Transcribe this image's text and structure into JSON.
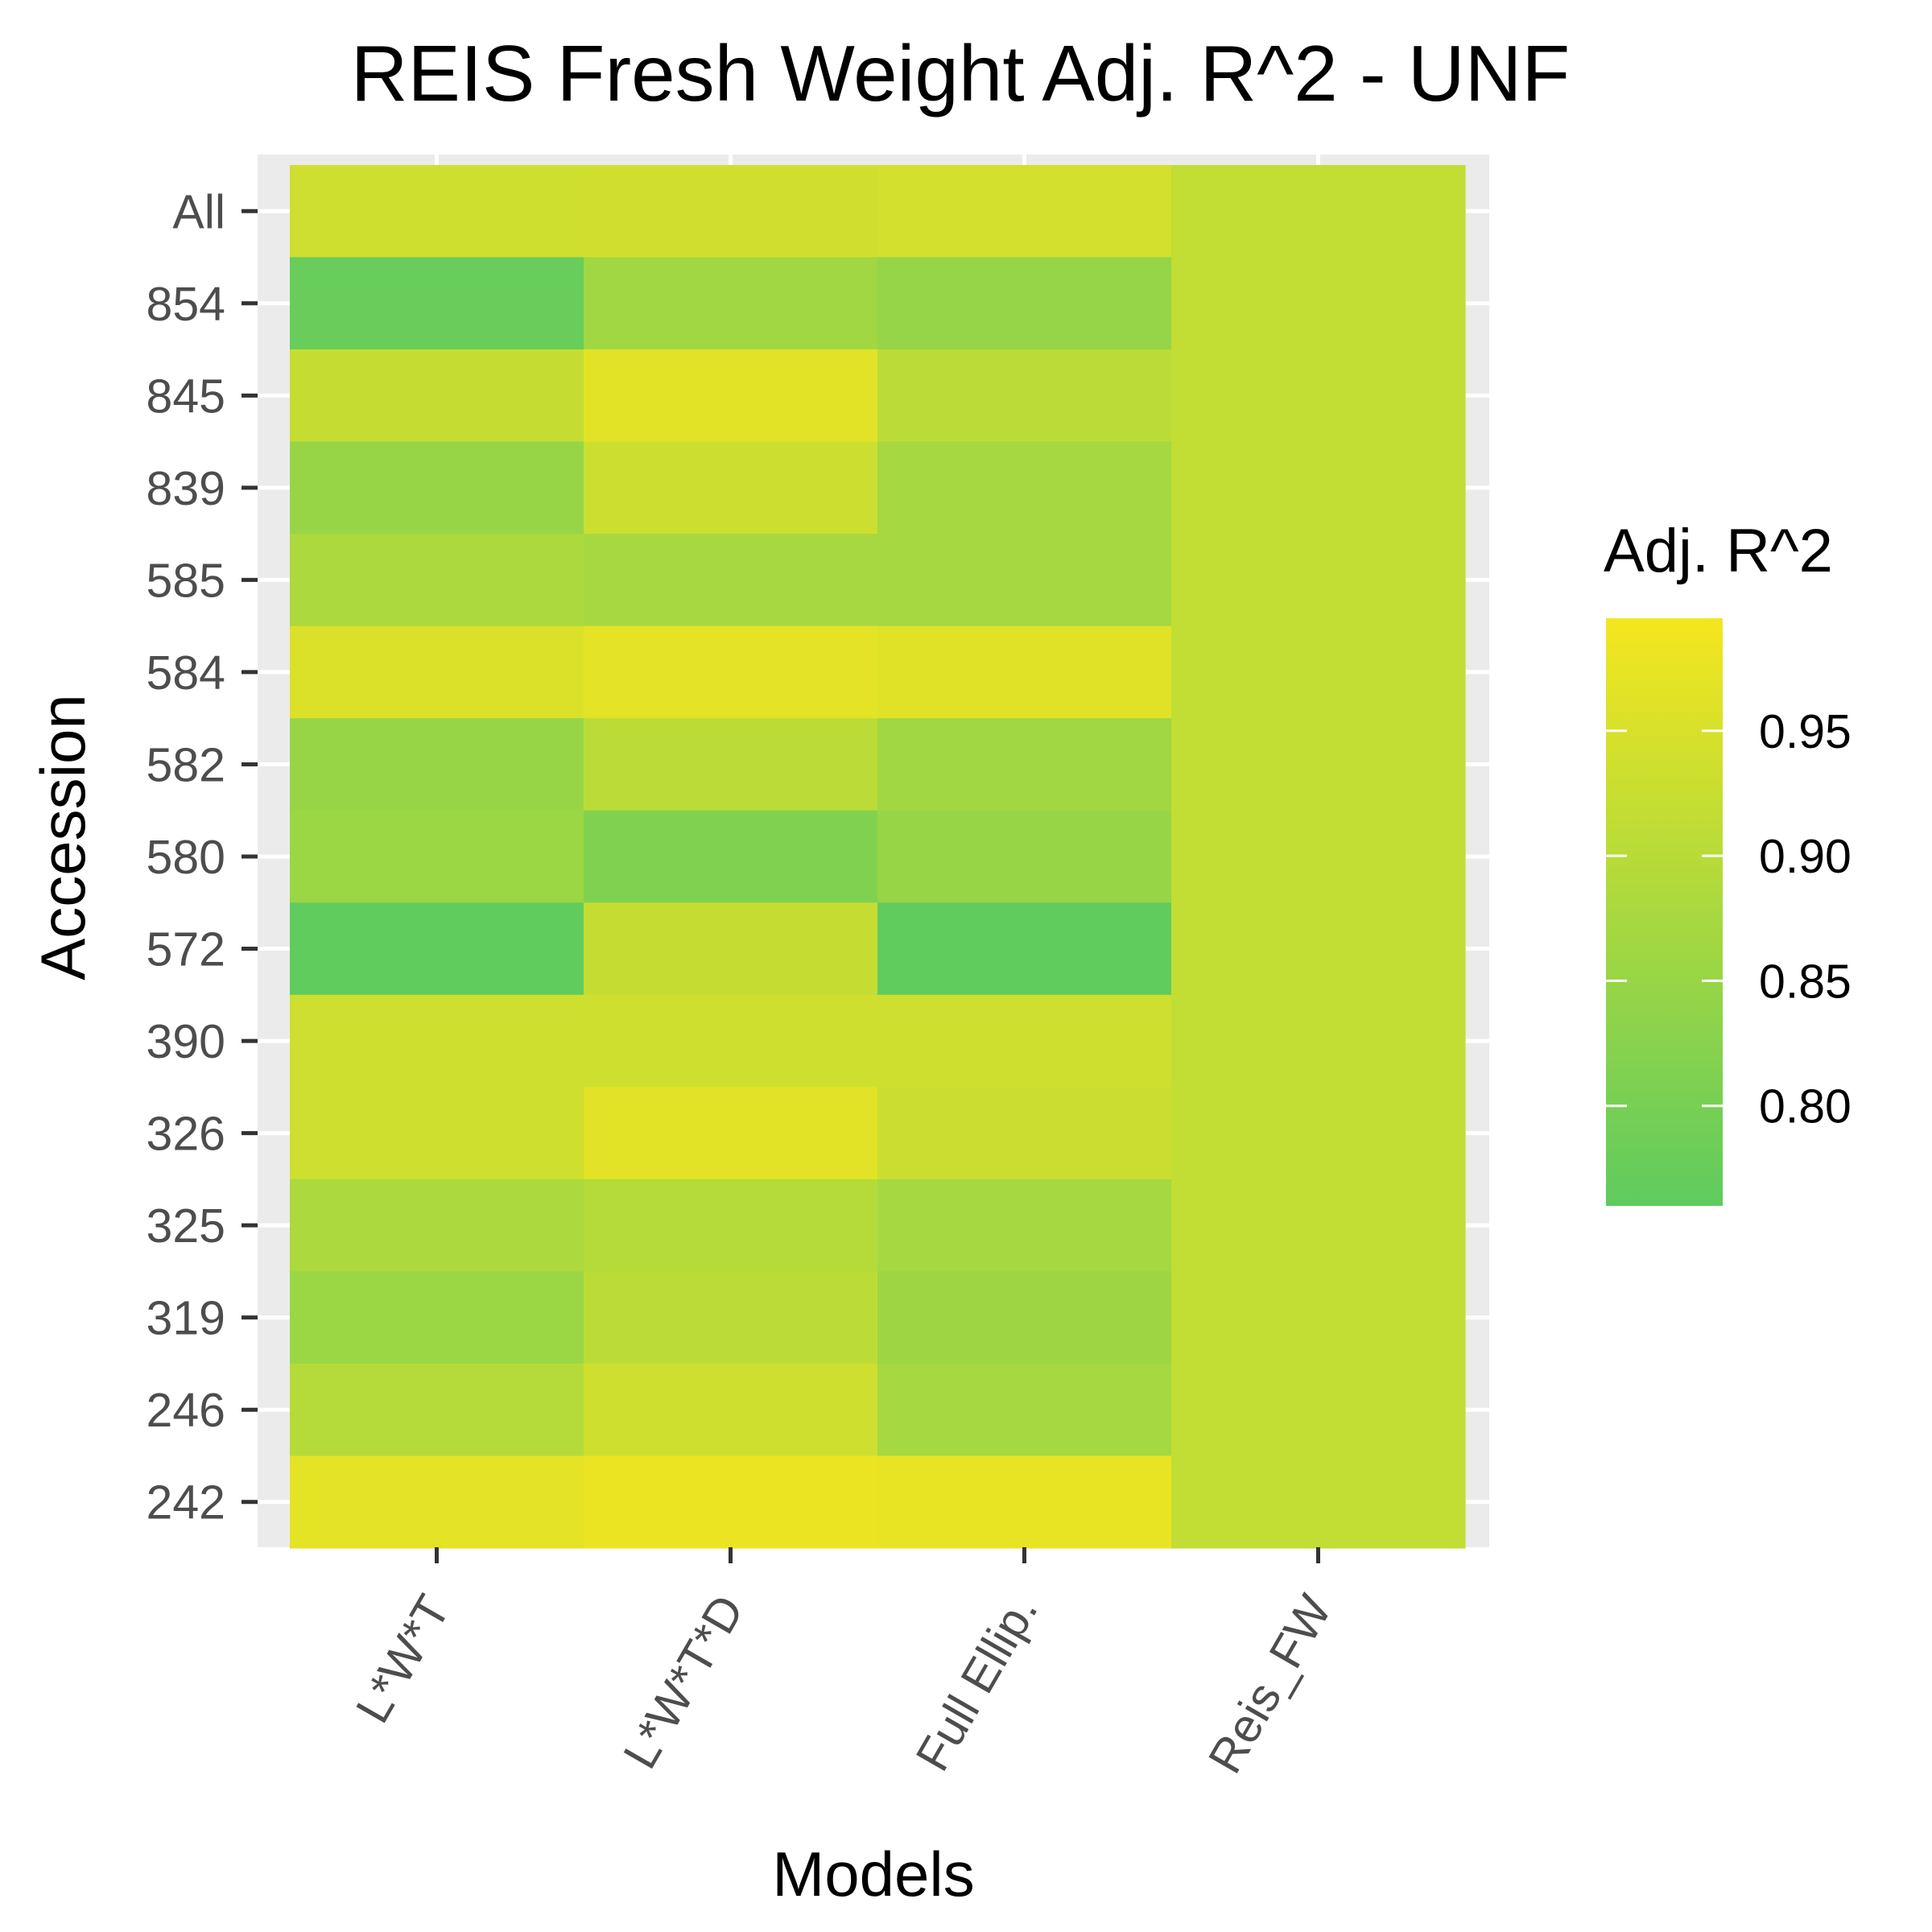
{
  "chart_data": {
    "type": "heatmap",
    "title": "REIS Fresh Weight Adj. R^2 - UNF",
    "xlabel": "Models",
    "ylabel": "Accession",
    "x_categories": [
      "L*W*T",
      "L*W*T*D",
      "Full Ellip.",
      "Reis_FW"
    ],
    "y_categories": [
      "All",
      "854",
      "845",
      "839",
      "585",
      "584",
      "582",
      "580",
      "572",
      "390",
      "326",
      "325",
      "319",
      "246",
      "242"
    ],
    "values": [
      [
        0.935,
        0.938,
        0.942,
        0.915
      ],
      [
        0.775,
        0.865,
        0.845,
        0.915
      ],
      [
        0.92,
        0.965,
        0.905,
        0.915
      ],
      [
        0.85,
        0.93,
        0.87,
        0.915
      ],
      [
        0.88,
        0.875,
        0.87,
        0.915
      ],
      [
        0.955,
        0.97,
        0.962,
        0.915
      ],
      [
        0.85,
        0.905,
        0.865,
        0.915
      ],
      [
        0.855,
        0.815,
        0.85,
        0.915
      ],
      [
        0.765,
        0.92,
        0.765,
        0.915
      ],
      [
        0.935,
        0.935,
        0.935,
        0.915
      ],
      [
        0.935,
        0.965,
        0.928,
        0.915
      ],
      [
        0.88,
        0.895,
        0.87,
        0.915
      ],
      [
        0.855,
        0.905,
        0.86,
        0.915
      ],
      [
        0.895,
        0.935,
        0.87,
        0.915
      ],
      [
        0.97,
        0.98,
        0.975,
        0.915
      ]
    ],
    "color_scale": {
      "title": "Adj. R^2",
      "min": 0.76,
      "max": 0.995,
      "low_color": "#5ecb5f",
      "high_color": "#f5e61e",
      "ticks": [
        "0.95",
        "0.90",
        "0.85",
        "0.80"
      ],
      "tick_values": [
        0.95,
        0.9,
        0.85,
        0.8
      ]
    },
    "panel_background": "#ebebeb",
    "grid": true,
    "legend_position": "right"
  }
}
